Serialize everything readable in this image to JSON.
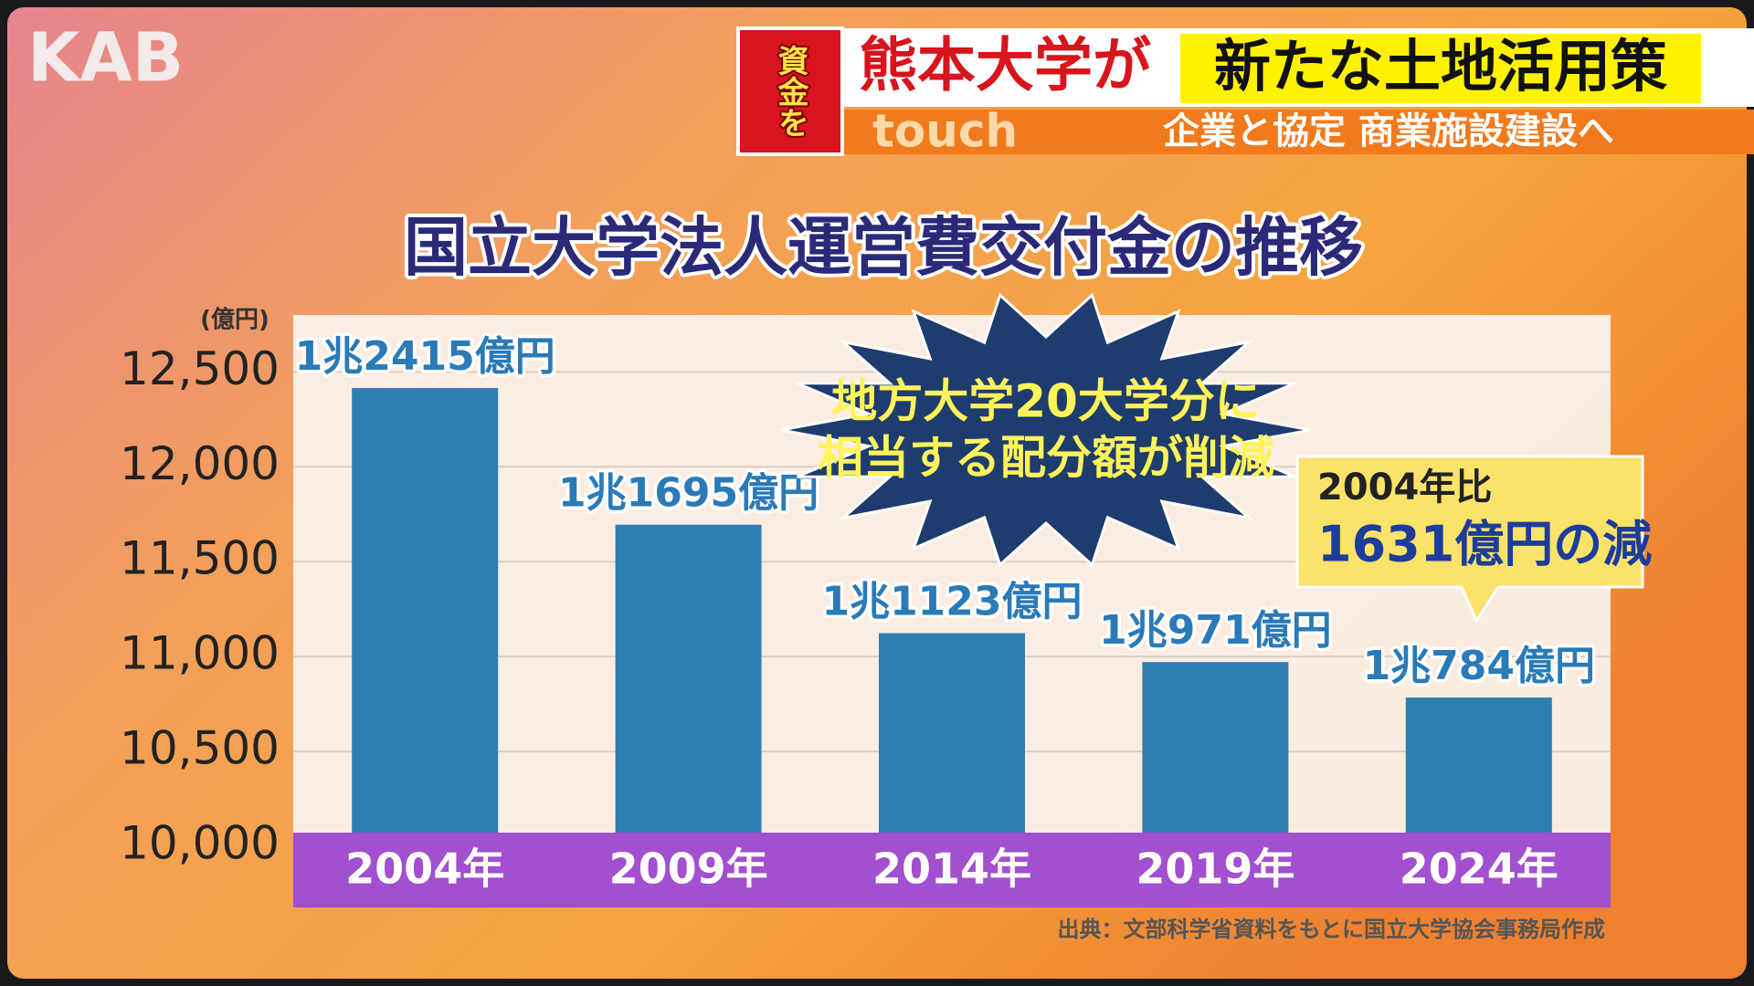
{
  "broadcast": {
    "logo": "KAB",
    "badge": "資金を",
    "headline": "熊本大学が",
    "headline_highlight": "新たな土地活用策",
    "corner": "touch",
    "subheadline": "企業と協定 商業施設建設へ"
  },
  "chart_data": {
    "type": "bar",
    "title": "国立大学法人運営費交付金の推移",
    "y_unit": "(億円)",
    "categories": [
      "2004年",
      "2009年",
      "2014年",
      "2019年",
      "2024年"
    ],
    "values": [
      12415,
      11695,
      11123,
      10971,
      10784
    ],
    "value_labels": [
      "1兆2415億円",
      "1兆1695億円",
      "1兆1123億円",
      "1兆971億円",
      "1兆784億円"
    ],
    "color": "#2f7db5",
    "ylim": [
      10000,
      12800
    ],
    "yticks": [
      {
        "value": 10000,
        "label": "10,000"
      },
      {
        "value": 10500,
        "label": "10,500"
      },
      {
        "value": 11000,
        "label": "11,000"
      },
      {
        "value": 11500,
        "label": "11,500"
      },
      {
        "value": 12000,
        "label": "12,000"
      },
      {
        "value": 12500,
        "label": "12,500"
      }
    ],
    "grid": true,
    "annotations": [
      "地方大学20大学分に",
      "相当する配分額が削減"
    ],
    "callout": [
      "2004年比",
      "1631億円の減"
    ],
    "source": "出典：文部科学省資料をもとに国立大学協会事務局作成"
  }
}
